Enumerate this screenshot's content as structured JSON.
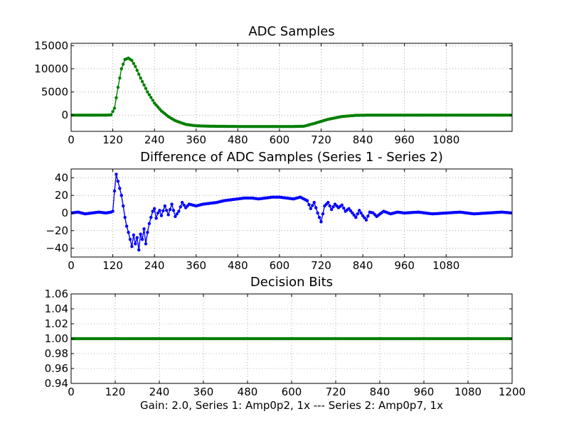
{
  "chart_data": [
    {
      "type": "line",
      "title": "ADC Samples",
      "xlabel": "",
      "ylabel": "",
      "xlim": [
        0,
        1270
      ],
      "ylim": [
        -3500,
        15500
      ],
      "xticks": [
        0,
        120,
        240,
        360,
        480,
        600,
        720,
        840,
        960,
        1080
      ],
      "xtick_labels": [
        "0",
        "120",
        "240",
        "360",
        "480",
        "600",
        "720",
        "840",
        "960",
        "1080"
      ],
      "yticks": [
        0,
        5000,
        10000,
        15000
      ],
      "ytick_labels": [
        "0",
        "5000",
        "10000",
        "15000"
      ],
      "grid": true,
      "series": [
        {
          "name": "ADC samples",
          "color": "#007f00",
          "marker": "dot",
          "x": [
            0,
            100,
            115,
            125,
            135,
            145,
            155,
            165,
            175,
            185,
            200,
            220,
            240,
            260,
            280,
            300,
            330,
            360,
            400,
            480,
            560,
            600,
            640,
            670,
            700,
            740,
            780,
            820,
            860,
            900,
            1000,
            1100,
            1270
          ],
          "y": [
            0,
            0,
            50,
            1500,
            6000,
            10000,
            12000,
            12300,
            11800,
            10500,
            8000,
            5000,
            2600,
            900,
            -300,
            -1200,
            -2000,
            -2300,
            -2400,
            -2450,
            -2450,
            -2450,
            -2450,
            -2400,
            -1800,
            -900,
            -300,
            -50,
            0,
            0,
            0,
            0,
            0
          ]
        }
      ]
    },
    {
      "type": "line",
      "title": "Difference of ADC Samples (Series 1 - Series 2)",
      "xlabel": "",
      "ylabel": "",
      "xlim": [
        0,
        1270
      ],
      "ylim": [
        -50,
        50
      ],
      "xticks": [
        0,
        120,
        240,
        360,
        480,
        600,
        720,
        840,
        960,
        1080
      ],
      "xtick_labels": [
        "0",
        "120",
        "240",
        "360",
        "480",
        "600",
        "720",
        "840",
        "960",
        "1080"
      ],
      "yticks": [
        -40,
        -20,
        0,
        20,
        40
      ],
      "ytick_labels": [
        "−40",
        "−20",
        "0",
        "20",
        "40"
      ],
      "grid": true,
      "series": [
        {
          "name": "Series 1 - Series 2",
          "color": "#0000ff",
          "marker": "dot",
          "x": [
            0,
            20,
            40,
            60,
            80,
            100,
            115,
            120,
            125,
            130,
            135,
            140,
            145,
            150,
            155,
            160,
            165,
            170,
            175,
            180,
            185,
            190,
            195,
            200,
            205,
            210,
            215,
            220,
            225,
            230,
            235,
            240,
            245,
            250,
            255,
            260,
            270,
            280,
            290,
            300,
            310,
            320,
            330,
            340,
            360,
            380,
            400,
            420,
            440,
            460,
            480,
            500,
            520,
            540,
            560,
            580,
            600,
            620,
            640,
            660,
            680,
            690,
            700,
            710,
            720,
            730,
            740,
            750,
            760,
            770,
            780,
            790,
            800,
            810,
            820,
            830,
            840,
            850,
            860,
            870,
            880,
            900,
            920,
            940,
            960,
            1000,
            1040,
            1080,
            1120,
            1160,
            1200,
            1240,
            1270
          ],
          "y": [
            0,
            1,
            -1,
            0,
            1,
            0,
            1,
            2,
            25,
            44,
            36,
            28,
            20,
            8,
            -5,
            -15,
            -22,
            -30,
            -38,
            -25,
            -35,
            -28,
            -42,
            -24,
            -30,
            -18,
            -35,
            -22,
            -12,
            -5,
            2,
            5,
            -6,
            0,
            3,
            -3,
            8,
            -2,
            10,
            -4,
            2,
            12,
            6,
            10,
            8,
            10,
            11,
            12,
            14,
            15,
            16,
            17,
            17,
            16,
            17,
            18,
            18,
            17,
            16,
            18,
            14,
            5,
            12,
            0,
            -10,
            8,
            12,
            4,
            10,
            6,
            9,
            2,
            5,
            0,
            -5,
            3,
            -3,
            -8,
            1,
            0,
            -4,
            2,
            -1,
            1,
            0,
            1,
            -1,
            0,
            1,
            -1,
            0,
            1,
            0
          ]
        }
      ]
    },
    {
      "type": "line",
      "title": "Decision Bits",
      "xlabel": "Gain: 2.0, Series 1: Amp0p2, 1x --- Series 2: Amp0p7, 1x",
      "ylabel": "",
      "xlim": [
        0,
        1200
      ],
      "ylim": [
        0.94,
        1.06
      ],
      "xticks": [
        0,
        120,
        240,
        360,
        480,
        600,
        720,
        840,
        960,
        1080,
        1200
      ],
      "xtick_labels": [
        "0",
        "120",
        "240",
        "360",
        "480",
        "600",
        "720",
        "840",
        "960",
        "1080",
        "1200"
      ],
      "yticks": [
        0.94,
        0.96,
        0.98,
        1.0,
        1.02,
        1.04,
        1.06
      ],
      "ytick_labels": [
        "0.94",
        "0.96",
        "0.98",
        "1.00",
        "1.02",
        "1.04",
        "1.06"
      ],
      "grid": true,
      "series": [
        {
          "name": "Decision bits",
          "color": "#007f00",
          "marker": "dot",
          "x": [
            0,
            1200
          ],
          "y": [
            1.0,
            1.0
          ]
        }
      ]
    }
  ]
}
